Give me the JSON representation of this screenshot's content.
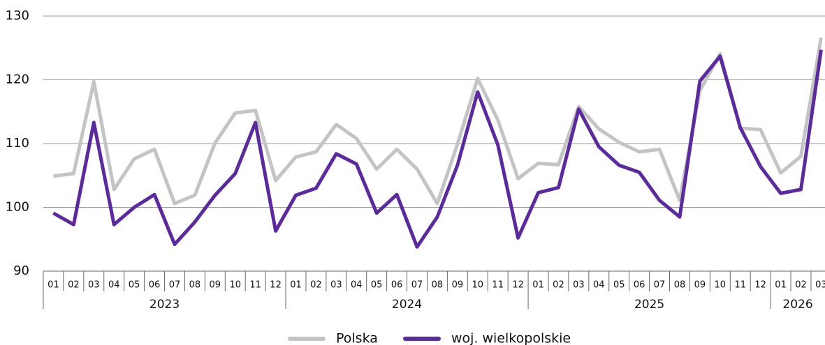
{
  "chart_data": {
    "type": "line",
    "categories": [
      "01",
      "02",
      "03",
      "04",
      "05",
      "06",
      "07",
      "08",
      "09",
      "10",
      "11",
      "12",
      "01",
      "02",
      "03",
      "04",
      "05",
      "06",
      "07",
      "08",
      "09",
      "10",
      "11",
      "12",
      "01",
      "02",
      "03",
      "04",
      "05",
      "06",
      "07",
      "08",
      "09",
      "10",
      "11",
      "12",
      "01",
      "02",
      "03"
    ],
    "years": [
      "2023",
      "2024",
      "2025",
      "2026"
    ],
    "series": [
      {
        "name": "Polska",
        "color": "#c4c4c4",
        "values": [
          104.9,
          105.3,
          119.7,
          102.8,
          107.6,
          109.1,
          100.6,
          101.9,
          110.1,
          114.8,
          115.2,
          104.2,
          107.9,
          108.7,
          113,
          110.8,
          106,
          109.1,
          106,
          100.6,
          109.9,
          120.2,
          113.7,
          104.5,
          106.9,
          106.7,
          115.8,
          112.3,
          110.2,
          108.7,
          109.1,
          101.1,
          118.3,
          124.1,
          112.4,
          112.2,
          105.4,
          108,
          126.6
        ]
      },
      {
        "name": "woj. wielkopolskie",
        "color": "#5b2a9e",
        "values": [
          99.1,
          97.3,
          113.3,
          97.3,
          100,
          102,
          94.2,
          97.7,
          101.9,
          105.3,
          113.3,
          96.3,
          101.9,
          103,
          108.4,
          106.8,
          99.1,
          102,
          93.8,
          98.5,
          106.6,
          118.1,
          109.8,
          95.2,
          102.3,
          103.1,
          115.4,
          109.5,
          106.6,
          105.5,
          101.1,
          98.5,
          119.8,
          123.7,
          112.5,
          106.4,
          102.2,
          102.8,
          124.7
        ]
      }
    ],
    "ylim": [
      90,
      130
    ],
    "yticks": [
      90,
      100,
      110,
      120,
      130
    ],
    "grid": true,
    "legend": "bottom"
  }
}
